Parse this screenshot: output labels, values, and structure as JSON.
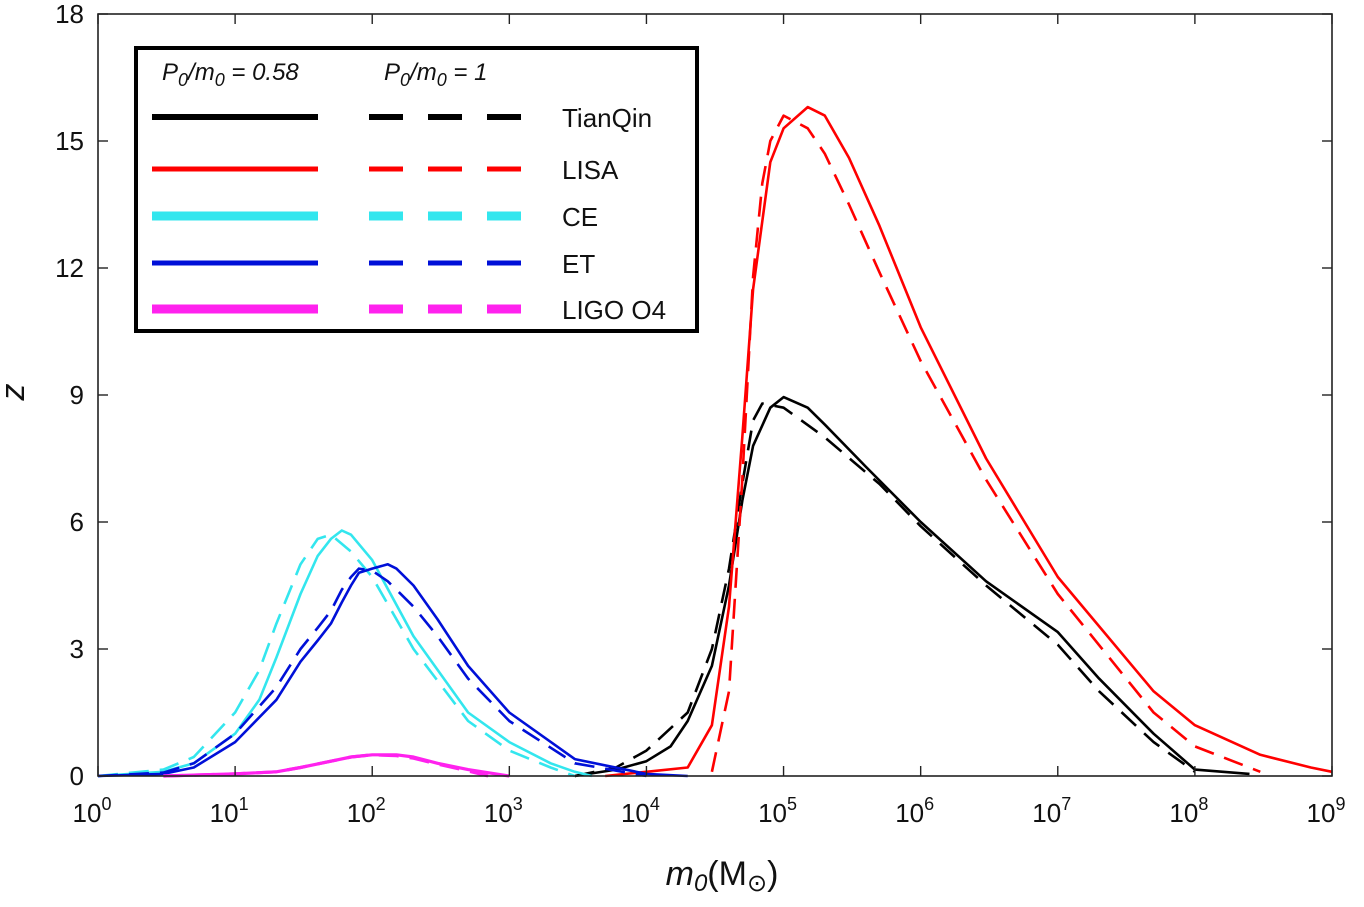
{
  "chart_data": {
    "type": "line",
    "xscale": "log",
    "xlim": [
      1,
      1000000000
    ],
    "ylim": [
      0,
      18
    ],
    "xlabel": "m0(M⊙)",
    "ylabel": "z",
    "grid": false,
    "legend_position": "top-left",
    "legend_headers": [
      "P0/m0 = 0.58",
      "P0/m0 = 1"
    ],
    "x_tick_base": "10",
    "x_tick_exponents": [
      "0",
      "1",
      "2",
      "3",
      "4",
      "5",
      "6",
      "7",
      "8",
      "9"
    ],
    "y_ticks": [
      "0",
      "3",
      "6",
      "9",
      "12",
      "15",
      "18"
    ],
    "colors": {
      "TianQin": "#000000",
      "LISA": "#ff0000",
      "CE": "#33e6ee",
      "ET": "#0010d8",
      "LIGO O4": "#ff22ee"
    },
    "series": [
      {
        "name": "TianQin",
        "variant": "P0/m0 = 0.58",
        "x": [
          3000,
          6000,
          10000,
          15000,
          20000,
          30000,
          40000,
          50000,
          60000,
          80000,
          100000,
          150000,
          200000,
          400000,
          1000000,
          3000000,
          10000000,
          20000000,
          50000000,
          100000000,
          250000000
        ],
        "y": [
          0,
          0.15,
          0.35,
          0.7,
          1.3,
          2.6,
          4.5,
          6.5,
          7.8,
          8.7,
          8.95,
          8.7,
          8.3,
          7.3,
          6,
          4.6,
          3.4,
          2.3,
          1.0,
          0.15,
          0.05
        ]
      },
      {
        "name": "TianQin",
        "variant": "P0/m0 = 1",
        "x": [
          3000,
          6000,
          10000,
          20000,
          30000,
          40000,
          50000,
          60000,
          70000,
          100000,
          200000,
          500000,
          1000000,
          3000000,
          10000000,
          20000000,
          50000000,
          100000000
        ],
        "y": [
          0,
          0.2,
          0.6,
          1.5,
          3,
          4.9,
          6.9,
          8.4,
          8.8,
          8.7,
          8,
          6.9,
          5.9,
          4.5,
          3.1,
          2,
          0.8,
          0.1
        ]
      },
      {
        "name": "LISA",
        "variant": "P0/m0 = 0.58",
        "x": [
          5000,
          10000,
          20000,
          30000,
          40000,
          50000,
          60000,
          80000,
          100000,
          150000,
          200000,
          300000,
          500000,
          1000000,
          3000000,
          10000000,
          50000000,
          100000000,
          300000000,
          700000000,
          1000000000
        ],
        "y": [
          0,
          0.1,
          0.2,
          1.2,
          4,
          8,
          11.5,
          14.5,
          15.3,
          15.8,
          15.6,
          14.6,
          13,
          10.6,
          7.5,
          4.7,
          2,
          1.2,
          0.5,
          0.2,
          0.1
        ]
      },
      {
        "name": "LISA",
        "variant": "P0/m0 = 1",
        "x": [
          30000,
          40000,
          50000,
          60000,
          70000,
          80000,
          100000,
          150000,
          200000,
          300000,
          500000,
          1000000,
          3000000,
          10000000,
          50000000,
          100000000,
          300000000
        ],
        "y": [
          0.1,
          2,
          7,
          11.8,
          14,
          15,
          15.6,
          15.3,
          14.7,
          13.5,
          11.9,
          9.8,
          7,
          4.3,
          1.5,
          0.7,
          0.1
        ]
      },
      {
        "name": "CE",
        "variant": "P0/m0 = 0.58",
        "x": [
          1,
          3,
          5,
          10,
          15,
          20,
          30,
          40,
          50,
          60,
          70,
          100,
          200,
          500,
          1000,
          2000,
          3000,
          4000
        ],
        "y": [
          0,
          0.1,
          0.3,
          1.0,
          1.8,
          2.8,
          4.3,
          5.2,
          5.6,
          5.8,
          5.7,
          5.1,
          3.3,
          1.5,
          0.8,
          0.3,
          0.1,
          0
        ]
      },
      {
        "name": "CE",
        "variant": "P0/m0 = 1",
        "x": [
          1,
          3,
          5,
          10,
          15,
          20,
          30,
          40,
          50,
          70,
          100,
          200,
          500,
          1000,
          2000,
          3000
        ],
        "y": [
          0,
          0.15,
          0.45,
          1.5,
          2.5,
          3.6,
          5.0,
          5.6,
          5.7,
          5.3,
          4.7,
          3.0,
          1.3,
          0.6,
          0.2,
          0
        ]
      },
      {
        "name": "ET",
        "variant": "P0/m0 = 0.58",
        "x": [
          1,
          3,
          5,
          10,
          20,
          30,
          40,
          50,
          60,
          70,
          80,
          100,
          130,
          150,
          200,
          300,
          500,
          1000,
          3000,
          10000,
          20000
        ],
        "y": [
          0,
          0.05,
          0.2,
          0.8,
          1.8,
          2.7,
          3.2,
          3.6,
          4.1,
          4.5,
          4.8,
          4.9,
          5.0,
          4.9,
          4.5,
          3.7,
          2.6,
          1.5,
          0.4,
          0.05,
          0
        ]
      },
      {
        "name": "ET",
        "variant": "P0/m0 = 1",
        "x": [
          1,
          3,
          5,
          10,
          20,
          30,
          40,
          50,
          60,
          70,
          80,
          100,
          130,
          150,
          200,
          300,
          500,
          1000,
          3000,
          10000
        ],
        "y": [
          0,
          0.08,
          0.3,
          1.0,
          2.1,
          3.0,
          3.5,
          3.9,
          4.4,
          4.7,
          4.9,
          4.85,
          4.6,
          4.4,
          4.0,
          3.3,
          2.3,
          1.3,
          0.3,
          0
        ]
      },
      {
        "name": "LIGO O4",
        "variant": "P0/m0 = 0.58",
        "x": [
          3,
          10,
          20,
          30,
          50,
          70,
          100,
          150,
          200,
          300,
          500,
          1000
        ],
        "y": [
          0,
          0.05,
          0.1,
          0.2,
          0.35,
          0.45,
          0.5,
          0.5,
          0.45,
          0.3,
          0.15,
          0
        ]
      },
      {
        "name": "LIGO O4",
        "variant": "P0/m0 = 1",
        "x": [
          3,
          10,
          20,
          30,
          50,
          70,
          100,
          150,
          200,
          300,
          500,
          700
        ],
        "y": [
          0,
          0.05,
          0.1,
          0.2,
          0.35,
          0.45,
          0.5,
          0.48,
          0.42,
          0.28,
          0.12,
          0
        ]
      }
    ]
  }
}
